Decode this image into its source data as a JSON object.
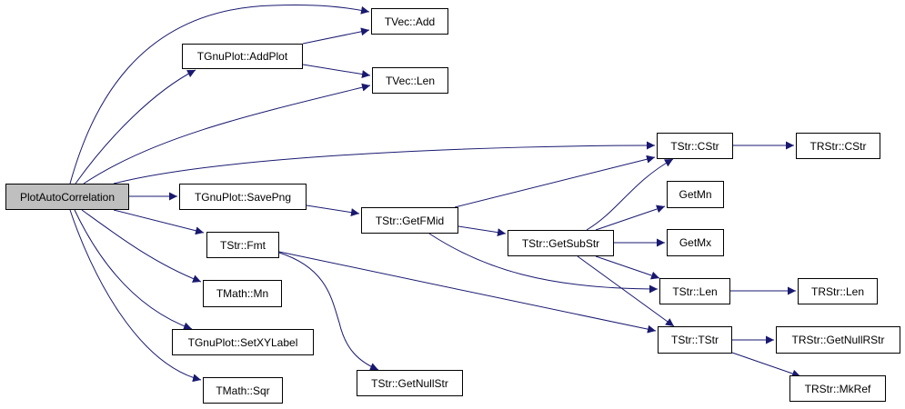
{
  "diagram": {
    "edge_color": "#191970",
    "root_fill": "#bfbfbf",
    "nodes": {
      "pac": "PlotAutoCorrelation",
      "vec_add": "TVec::Add",
      "addplot": "TGnuPlot::AddPlot",
      "vec_len": "TVec::Len",
      "savepng": "TGnuPlot::SavePng",
      "getfmid": "TStr::GetFMid",
      "fmt": "TStr::Fmt",
      "mn": "TMath::Mn",
      "setxylabel": "TGnuPlot::SetXYLabel",
      "sqr": "TMath::Sqr",
      "getnullstr": "TStr::GetNullStr",
      "cstr": "TStr::CStr",
      "rcstr": "TRStr::CStr",
      "getmn": "GetMn",
      "getmx": "GetMx",
      "getsubstr": "TStr::GetSubStr",
      "str_len": "TStr::Len",
      "rstr_len": "TRStr::Len",
      "tstr": "TStr::TStr",
      "getnullrstr": "TRStr::GetNullRStr",
      "mkref": "TRStr::MkRef"
    },
    "edges": [
      [
        "pac",
        "vec_add"
      ],
      [
        "pac",
        "addplot"
      ],
      [
        "pac",
        "vec_len"
      ],
      [
        "pac",
        "cstr"
      ],
      [
        "pac",
        "savepng"
      ],
      [
        "pac",
        "fmt"
      ],
      [
        "pac",
        "mn"
      ],
      [
        "pac",
        "setxylabel"
      ],
      [
        "pac",
        "sqr"
      ],
      [
        "addplot",
        "vec_add"
      ],
      [
        "addplot",
        "vec_len"
      ],
      [
        "savepng",
        "getfmid"
      ],
      [
        "getfmid",
        "cstr"
      ],
      [
        "getfmid",
        "getsubstr"
      ],
      [
        "getfmid",
        "str_len"
      ],
      [
        "fmt",
        "tstr"
      ],
      [
        "fmt",
        "getnullstr"
      ],
      [
        "getsubstr",
        "cstr"
      ],
      [
        "getsubstr",
        "getmn"
      ],
      [
        "getsubstr",
        "getmx"
      ],
      [
        "getsubstr",
        "str_len"
      ],
      [
        "getsubstr",
        "tstr"
      ],
      [
        "cstr",
        "rcstr"
      ],
      [
        "str_len",
        "rstr_len"
      ],
      [
        "tstr",
        "getnullrstr"
      ],
      [
        "tstr",
        "mkref"
      ]
    ]
  }
}
